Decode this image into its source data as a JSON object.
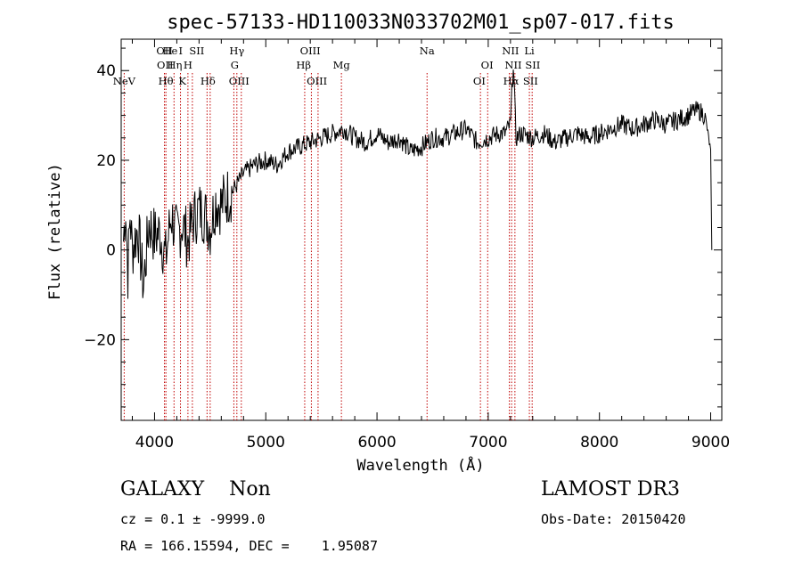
{
  "chart_data": {
    "type": "line",
    "title": "spec-57133-HD110033N033702M01_sp07-017.fits",
    "xlabel": "Wavelength (Å)",
    "ylabel": "Flux (relative)",
    "xlim": [
      3700,
      9100
    ],
    "ylim": [
      -38,
      47
    ],
    "xticks": [
      4000,
      5000,
      6000,
      7000,
      8000,
      9000
    ],
    "yticks": [
      -20,
      0,
      20,
      40
    ],
    "grid": false,
    "series": [
      {
        "name": "spectrum",
        "x": [
          3720,
          3740,
          3760,
          3780,
          3800,
          3850,
          3900,
          3950,
          4000,
          4050,
          4100,
          4150,
          4200,
          4250,
          4300,
          4350,
          4400,
          4450,
          4500,
          4550,
          4600,
          4650,
          4700,
          4750,
          4800,
          4850,
          4900,
          5000,
          5100,
          5200,
          5300,
          5400,
          5500,
          5600,
          5700,
          5800,
          5900,
          6000,
          6100,
          6200,
          6300,
          6400,
          6500,
          6600,
          6700,
          6800,
          6900,
          7000,
          7100,
          7150,
          7200,
          7225,
          7250,
          7300,
          7400,
          7500,
          7600,
          7700,
          7800,
          7900,
          8000,
          8100,
          8200,
          8300,
          8400,
          8500,
          8600,
          8700,
          8800,
          8850,
          8900,
          8950,
          9000,
          9010
        ],
        "y": [
          2,
          10,
          -5,
          8,
          0,
          5,
          -8,
          6,
          3,
          4,
          -2,
          8,
          3,
          6,
          2,
          7,
          9,
          8,
          5,
          11,
          10,
          12,
          13,
          15,
          17,
          18,
          19,
          20,
          19,
          22,
          23,
          24,
          25,
          26,
          27,
          25,
          24,
          26,
          24,
          25,
          22,
          23,
          25,
          25,
          26,
          27,
          24,
          25,
          26,
          26,
          28,
          42,
          25,
          26,
          25,
          26,
          24,
          25,
          26,
          25,
          26,
          27,
          28,
          27,
          28,
          29,
          28,
          29,
          30,
          31,
          31,
          30,
          22,
          0
        ]
      }
    ],
    "emission_lines": [
      {
        "label": "NeV",
        "wavelength": 3727,
        "row": 3
      },
      {
        "label": "OII",
        "wavelength": 4090,
        "row": 1
      },
      {
        "label": "OII",
        "wavelength": 4095,
        "row": 2
      },
      {
        "label": "Hθ",
        "wavelength": 4101,
        "row": 3
      },
      {
        "label": "He",
        "wavelength": 4140,
        "row": 1
      },
      {
        "label": "Hη",
        "wavelength": 4180,
        "row": 2
      },
      {
        "label": "I",
        "wavelength": 4235,
        "row": 1
      },
      {
        "label": "K",
        "wavelength": 4250,
        "row": 3
      },
      {
        "label": "H",
        "wavelength": 4300,
        "row": 2
      },
      {
        "label": "SII",
        "wavelength": 4380,
        "row": 1
      },
      {
        "label": "Hδ",
        "wavelength": 4480,
        "row": 3
      },
      {
        "label": "Hγ",
        "wavelength": 4740,
        "row": 1
      },
      {
        "label": "G",
        "wavelength": 4720,
        "row": 2
      },
      {
        "label": "OIII",
        "wavelength": 4760,
        "row": 3
      },
      {
        "label": "OIII",
        "wavelength": 5400,
        "row": 1
      },
      {
        "label": "Hβ",
        "wavelength": 5340,
        "row": 2
      },
      {
        "label": "OIII",
        "wavelength": 5460,
        "row": 3
      },
      {
        "label": "Mg",
        "wavelength": 5680,
        "row": 2
      },
      {
        "label": "Na",
        "wavelength": 6450,
        "row": 1
      },
      {
        "label": "OI",
        "wavelength": 6990,
        "row": 2
      },
      {
        "label": "OI",
        "wavelength": 6920,
        "row": 3
      },
      {
        "label": "NII",
        "wavelength": 7200,
        "row": 1
      },
      {
        "label": "NII",
        "wavelength": 7225,
        "row": 2
      },
      {
        "label": "Hα",
        "wavelength": 7205,
        "row": 3
      },
      {
        "label": "Li",
        "wavelength": 7370,
        "row": 1
      },
      {
        "label": "SII",
        "wavelength": 7400,
        "row": 2
      },
      {
        "label": "SII",
        "wavelength": 7380,
        "row": 3
      }
    ],
    "vertical_line_positions": [
      3727,
      4089,
      4102,
      4175,
      4233,
      4300,
      4340,
      4472,
      4500,
      4713,
      4740,
      4780,
      5350,
      5410,
      5470,
      5680,
      6450,
      6930,
      6995,
      7190,
      7210,
      7240,
      7370,
      7395
    ]
  },
  "info": {
    "class_line": "GALAXY    Non",
    "survey": "LAMOST DR3",
    "cz_line": "cz = 0.1 ± -9999.0",
    "obs_date": "Obs-Date: 20150420",
    "radec_line": "RA = 166.15594, DEC =    1.95087"
  }
}
